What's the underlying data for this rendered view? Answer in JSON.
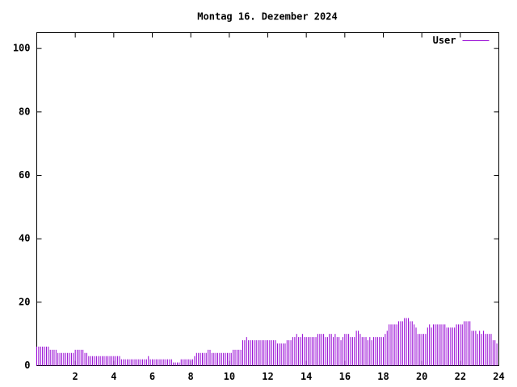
{
  "chart_data": {
    "type": "impulse",
    "title": "Montag 16. Dezember 2024",
    "series": [
      {
        "name": "User",
        "color": "#9400d3",
        "values": [
          6,
          6,
          6,
          6,
          6,
          6,
          6,
          5,
          5,
          5,
          5,
          4,
          4,
          4,
          4,
          4,
          4,
          4,
          4,
          4,
          5,
          5,
          5,
          5,
          5,
          4,
          4,
          3,
          3,
          3,
          3,
          3,
          3,
          3,
          3,
          3,
          3,
          3,
          3,
          3,
          3,
          3,
          3,
          3,
          2,
          2,
          2,
          2,
          2,
          2,
          2,
          2,
          2,
          2,
          2,
          2,
          2,
          2,
          3,
          2,
          2,
          2,
          2,
          2,
          2,
          2,
          2,
          2,
          2,
          2,
          2,
          1,
          1,
          1,
          1,
          2,
          2,
          2,
          2,
          2,
          2,
          2,
          3,
          4,
          4,
          4,
          4,
          4,
          4,
          5,
          5,
          4,
          4,
          4,
          4,
          4,
          4,
          4,
          4,
          4,
          4,
          4,
          5,
          5,
          5,
          5,
          5,
          8,
          8,
          9,
          8,
          8,
          8,
          8,
          8,
          8,
          8,
          8,
          8,
          8,
          8,
          8,
          8,
          8,
          8,
          7,
          7,
          7,
          7,
          7,
          8,
          8,
          8,
          9,
          9,
          10,
          9,
          9,
          10,
          9,
          9,
          9,
          9,
          9,
          9,
          9,
          10,
          10,
          10,
          10,
          9,
          9,
          10,
          10,
          9,
          10,
          9,
          9,
          8,
          9,
          10,
          10,
          10,
          9,
          9,
          9,
          11,
          11,
          10,
          9,
          9,
          9,
          8,
          9,
          8,
          9,
          9,
          9,
          9,
          9,
          9,
          10,
          11,
          13,
          13,
          13,
          13,
          13,
          14,
          14,
          14,
          15,
          15,
          15,
          14,
          14,
          13,
          12,
          10,
          10,
          10,
          10,
          10,
          12,
          13,
          12,
          13,
          13,
          13,
          13,
          13,
          13,
          13,
          12,
          12,
          12,
          12,
          12,
          13,
          13,
          13,
          13,
          14,
          14,
          14,
          14,
          11,
          11,
          11,
          10,
          11,
          10,
          11,
          10,
          10,
          10,
          10,
          8,
          8,
          7
        ]
      }
    ],
    "x": [
      0,
      0.1,
      0.2,
      0.3,
      0.4,
      0.5,
      0.6,
      0.7,
      0.8,
      0.9,
      1,
      1.1,
      1.2,
      1.3,
      1.4,
      1.5,
      1.6,
      1.7,
      1.8,
      1.9,
      2,
      2.1,
      2.2,
      2.3,
      2.4,
      2.5,
      2.6,
      2.7,
      2.8,
      2.9,
      3,
      3.1,
      3.2,
      3.3,
      3.4,
      3.5,
      3.6,
      3.7,
      3.8,
      3.9,
      4,
      4.1,
      4.2,
      4.3,
      4.4,
      4.5,
      4.6,
      4.7,
      4.8,
      4.9,
      5,
      5.1,
      5.2,
      5.3,
      5.4,
      5.5,
      5.6,
      5.7,
      5.8,
      5.9,
      6,
      6.1,
      6.2,
      6.3,
      6.4,
      6.5,
      6.6,
      6.7,
      6.8,
      6.9,
      7,
      7.1,
      7.2,
      7.3,
      7.4,
      7.5,
      7.6,
      7.7,
      7.8,
      7.9,
      8,
      8.1,
      8.2,
      8.3,
      8.4,
      8.5,
      8.6,
      8.7,
      8.8,
      8.9,
      9,
      9.1,
      9.2,
      9.3,
      9.4,
      9.5,
      9.6,
      9.7,
      9.8,
      9.9,
      10,
      10.1,
      10.2,
      10.3,
      10.4,
      10.5,
      10.6,
      10.7,
      10.8,
      10.9,
      11,
      11.1,
      11.2,
      11.3,
      11.4,
      11.5,
      11.6,
      11.7,
      11.8,
      11.9,
      12,
      12.1,
      12.2,
      12.3,
      12.4,
      12.5,
      12.6,
      12.7,
      12.8,
      12.9,
      13,
      13.1,
      13.2,
      13.3,
      13.4,
      13.5,
      13.6,
      13.7,
      13.8,
      13.9,
      14,
      14.1,
      14.2,
      14.3,
      14.4,
      14.5,
      14.6,
      14.7,
      14.8,
      14.9,
      15,
      15.1,
      15.2,
      15.3,
      15.4,
      15.5,
      15.6,
      15.7,
      15.8,
      15.9,
      16,
      16.1,
      16.2,
      16.3,
      16.4,
      16.5,
      16.6,
      16.7,
      16.8,
      16.9,
      17,
      17.1,
      17.2,
      17.3,
      17.4,
      17.5,
      17.6,
      17.7,
      17.8,
      17.9,
      18,
      18.1,
      18.2,
      18.3,
      18.4,
      18.5,
      18.6,
      18.7,
      18.8,
      18.9,
      19,
      19.1,
      19.2,
      19.3,
      19.4,
      19.5,
      19.6,
      19.7,
      19.8,
      19.9,
      20,
      20.1,
      20.2,
      20.3,
      20.4,
      20.5,
      20.6,
      20.7,
      20.8,
      20.9,
      21,
      21.1,
      21.2,
      21.3,
      21.4,
      21.5,
      21.6,
      21.7,
      21.8,
      21.9,
      22,
      22.1,
      22.2,
      22.3,
      22.4,
      22.5,
      22.6,
      22.7,
      22.8,
      22.9,
      23,
      23.1,
      23.2,
      23.3,
      23.4,
      23.5,
      23.6,
      23.7,
      23.8,
      23.9
    ],
    "xlim": [
      0,
      24
    ],
    "xticks": [
      2,
      4,
      6,
      8,
      10,
      12,
      14,
      16,
      18,
      20,
      22,
      24
    ],
    "ylim": [
      0,
      105
    ],
    "yticks": [
      0,
      20,
      40,
      60,
      80,
      100
    ],
    "legend": "top right"
  }
}
